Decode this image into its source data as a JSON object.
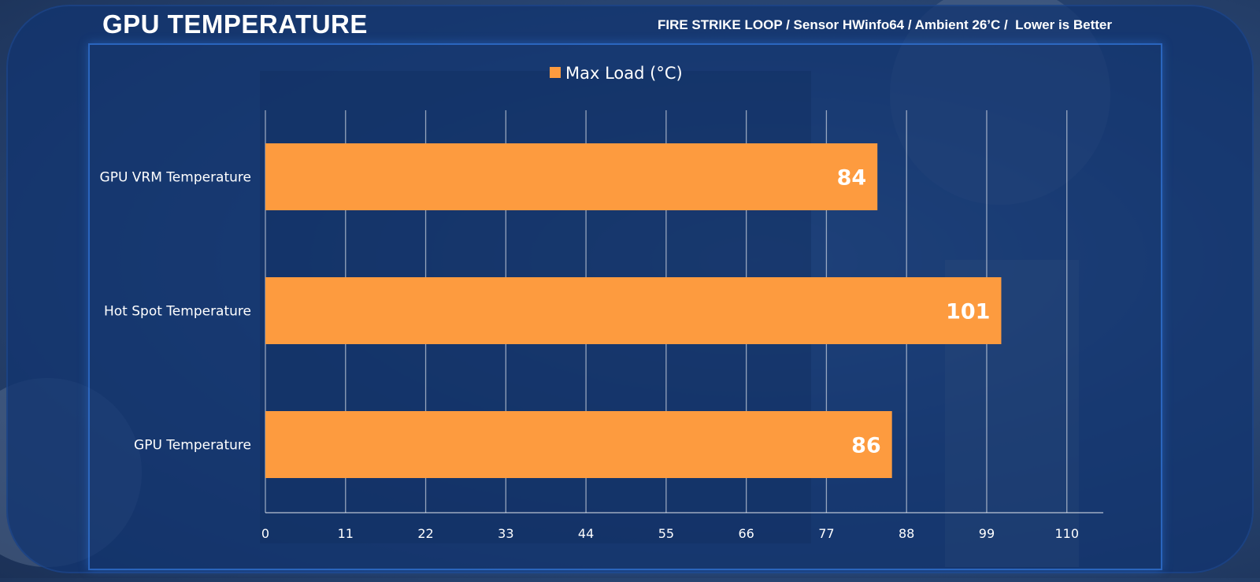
{
  "header": {
    "title": "GPU TEMPERATURE",
    "subtitle": "FIRE STRIKE LOOP / Sensor HWinfo64 / Ambient 26’C /  Lower is Better"
  },
  "colors": {
    "bar": "#fd9b3f",
    "panel": "#123470",
    "grid": "#ffffff"
  },
  "chart_data": {
    "type": "bar",
    "orientation": "horizontal",
    "categories": [
      "GPU VRM Temperature",
      "Hot Spot Temperature",
      "GPU Temperature"
    ],
    "series": [
      {
        "name": "Max Load (°C)",
        "values": [
          84,
          101,
          86
        ]
      }
    ],
    "data_labels": [
      "84",
      "101",
      "86"
    ],
    "xlim": [
      0,
      115
    ],
    "xticks": [
      0,
      11,
      22,
      33,
      44,
      55,
      66,
      77,
      88,
      99,
      110
    ],
    "grid": true,
    "legend": "top-center"
  }
}
